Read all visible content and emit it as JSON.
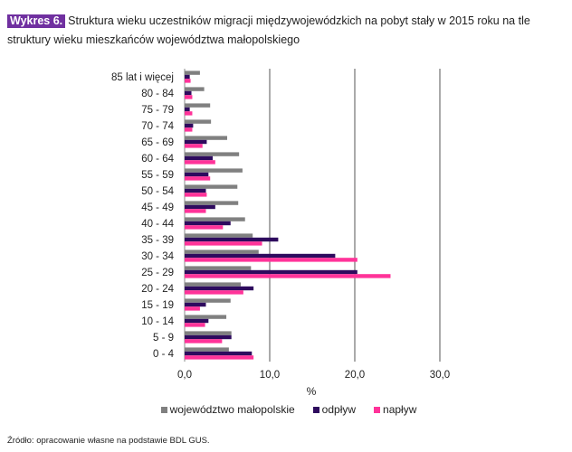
{
  "caption": {
    "tag": "Wykres 6.",
    "text": "Struktura wieku uczestników migracji międzywojewódzkich na pobyt stały w 2015 roku na tle struktury wieku mieszkańców województwa małopolskiego"
  },
  "chart_data": {
    "type": "bar",
    "orientation": "horizontal",
    "xlabel": "%",
    "xlim": [
      0,
      30
    ],
    "xticks": [
      "0,0",
      "10,0",
      "20,0",
      "30,0"
    ],
    "xtick_values": [
      0,
      10,
      20,
      30
    ],
    "grid": true,
    "legend_position": "bottom",
    "categories": [
      "85 lat i więcej",
      "80 - 84",
      "75 - 79",
      "70 - 74",
      "65 - 69",
      "60 - 64",
      "55 - 59",
      "50 - 54",
      "45 - 49",
      "40 - 44",
      "35 - 39",
      "30 - 34",
      "25 - 29",
      "20 - 24",
      "15 - 19",
      "10 - 14",
      "5 - 9",
      "0 - 4"
    ],
    "series": [
      {
        "name": "województwo małopolskie",
        "color": "#808080",
        "values": [
          1.8,
          2.3,
          3.0,
          3.1,
          5.0,
          6.4,
          6.8,
          6.2,
          6.3,
          7.1,
          8.0,
          8.7,
          7.8,
          6.6,
          5.4,
          4.9,
          5.5,
          5.2
        ]
      },
      {
        "name": "odpływ",
        "color": "#2e0a5e",
        "values": [
          0.6,
          0.8,
          0.6,
          1.0,
          2.6,
          3.3,
          2.8,
          2.5,
          3.6,
          5.4,
          11.0,
          17.7,
          20.3,
          8.1,
          2.5,
          2.8,
          5.5,
          7.9
        ]
      },
      {
        "name": "napływ",
        "color": "#ff3399",
        "values": [
          0.7,
          0.9,
          0.9,
          0.9,
          2.1,
          3.6,
          3.0,
          2.6,
          2.5,
          4.5,
          9.1,
          20.3,
          24.2,
          6.9,
          1.8,
          2.4,
          4.4,
          8.1
        ]
      }
    ]
  },
  "source": "Źródło: opracowanie własne na podstawie BDL GUS."
}
